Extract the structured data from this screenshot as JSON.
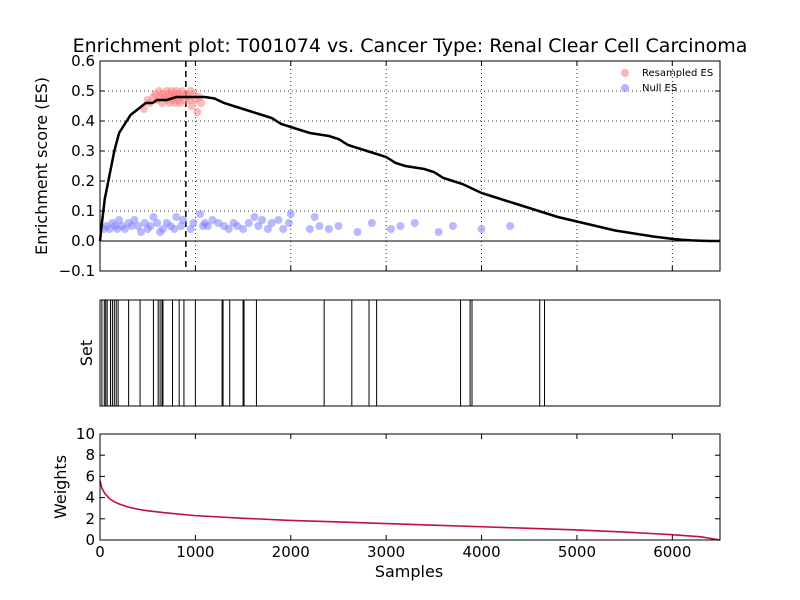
{
  "chart_data": [
    {
      "type": "line",
      "panel": "enrichment",
      "title": "Enrichment plot: T001074 vs. Cancer Type: Renal Clear Cell Carcinoma",
      "xlabel": "",
      "ylabel": "Enrichment score (ES)",
      "xlim": [
        0,
        6500
      ],
      "ylim": [
        -0.1,
        0.6
      ],
      "yticks": [
        "−0.1",
        "0.0",
        "0.1",
        "0.2",
        "0.3",
        "0.4",
        "0.5",
        "0.6"
      ],
      "grid": true,
      "legend_position": "top-right",
      "legend": [
        {
          "label": "Resampled ES",
          "color": "#ff8080"
        },
        {
          "label": "Null ES",
          "color": "#8080ff"
        }
      ],
      "peak_x": 900,
      "es_curve": {
        "color": "#000000",
        "x": [
          0,
          20,
          50,
          100,
          150,
          200,
          260,
          320,
          400,
          480,
          550,
          600,
          700,
          800,
          900,
          1000,
          1100,
          1200,
          1300,
          1400,
          1500,
          1600,
          1700,
          1800,
          1900,
          2000,
          2100,
          2200,
          2300,
          2400,
          2500,
          2600,
          2700,
          2800,
          2900,
          3000,
          3100,
          3200,
          3300,
          3400,
          3500,
          3600,
          3700,
          3800,
          3900,
          4000,
          4200,
          4400,
          4600,
          4800,
          5000,
          5200,
          5400,
          5600,
          5800,
          6000,
          6100,
          6200,
          6300,
          6400,
          6500
        ],
        "y": [
          0.0,
          0.06,
          0.14,
          0.22,
          0.3,
          0.36,
          0.39,
          0.42,
          0.44,
          0.46,
          0.46,
          0.47,
          0.47,
          0.48,
          0.48,
          0.48,
          0.48,
          0.475,
          0.46,
          0.45,
          0.44,
          0.43,
          0.42,
          0.41,
          0.39,
          0.38,
          0.37,
          0.36,
          0.355,
          0.35,
          0.34,
          0.32,
          0.31,
          0.3,
          0.29,
          0.28,
          0.26,
          0.25,
          0.245,
          0.24,
          0.23,
          0.21,
          0.2,
          0.19,
          0.175,
          0.16,
          0.14,
          0.12,
          0.1,
          0.08,
          0.065,
          0.05,
          0.035,
          0.025,
          0.015,
          0.007,
          0.004,
          0.002,
          0.001,
          0.0,
          0.0
        ]
      },
      "resampled_es": {
        "color": "#ff8080",
        "x": [
          460,
          500,
          520,
          560,
          580,
          600,
          620,
          640,
          650,
          660,
          680,
          700,
          700,
          720,
          730,
          740,
          750,
          760,
          770,
          780,
          790,
          800,
          810,
          820,
          830,
          840,
          850,
          860,
          880,
          900,
          920,
          940,
          950,
          960,
          980,
          1000,
          1020,
          1040,
          1060
        ],
        "y": [
          0.44,
          0.47,
          0.46,
          0.48,
          0.49,
          0.47,
          0.5,
          0.48,
          0.46,
          0.49,
          0.48,
          0.5,
          0.47,
          0.49,
          0.46,
          0.48,
          0.5,
          0.47,
          0.49,
          0.48,
          0.46,
          0.5,
          0.48,
          0.47,
          0.49,
          0.46,
          0.48,
          0.5,
          0.47,
          0.49,
          0.48,
          0.47,
          0.5,
          0.45,
          0.49,
          0.47,
          0.43,
          0.48,
          0.46
        ]
      },
      "null_es": {
        "color": "#8080ff",
        "x": [
          40,
          70,
          100,
          130,
          160,
          180,
          200,
          230,
          260,
          300,
          330,
          360,
          400,
          430,
          470,
          500,
          530,
          560,
          600,
          630,
          660,
          700,
          740,
          780,
          800,
          850,
          870,
          950,
          980,
          1050,
          1080,
          1100,
          1130,
          1180,
          1240,
          1300,
          1350,
          1400,
          1440,
          1500,
          1560,
          1620,
          1660,
          1700,
          1760,
          1800,
          1870,
          1920,
          1980,
          2000,
          2200,
          2250,
          2300,
          2400,
          2500,
          2700,
          2850,
          3050,
          3150,
          3300,
          3550,
          3700,
          4000,
          4300
        ],
        "y": [
          0.04,
          0.05,
          0.04,
          0.06,
          0.05,
          0.04,
          0.07,
          0.05,
          0.04,
          0.06,
          0.05,
          0.07,
          0.05,
          0.03,
          0.06,
          0.04,
          0.05,
          0.08,
          0.06,
          0.03,
          0.04,
          0.06,
          0.05,
          0.04,
          0.08,
          0.05,
          0.07,
          0.04,
          0.06,
          0.09,
          0.05,
          0.06,
          0.05,
          0.07,
          0.06,
          0.05,
          0.04,
          0.06,
          0.05,
          0.04,
          0.06,
          0.08,
          0.05,
          0.07,
          0.04,
          0.06,
          0.07,
          0.04,
          0.06,
          0.09,
          0.04,
          0.08,
          0.05,
          0.04,
          0.05,
          0.03,
          0.06,
          0.04,
          0.05,
          0.06,
          0.03,
          0.05,
          0.04,
          0.05
        ]
      }
    },
    {
      "type": "bar",
      "panel": "set",
      "xlabel": "",
      "ylabel": "Set",
      "xlim": [
        0,
        6500
      ],
      "hit_positions": [
        20,
        45,
        60,
        75,
        110,
        130,
        150,
        170,
        190,
        300,
        420,
        560,
        610,
        630,
        650,
        660,
        760,
        830,
        880,
        1000,
        1280,
        1290,
        1360,
        1500,
        1510,
        1640,
        2350,
        2640,
        2820,
        2900,
        3780,
        3880,
        3900,
        4610,
        4660
      ]
    },
    {
      "type": "line",
      "panel": "weights",
      "xlabel": "Samples",
      "ylabel": "Weights",
      "xlim": [
        0,
        6500
      ],
      "ylim": [
        0,
        10
      ],
      "xticks": [
        "0",
        "1000",
        "2000",
        "3000",
        "4000",
        "5000",
        "6000"
      ],
      "yticks": [
        "0",
        "2",
        "4",
        "6",
        "8",
        "10"
      ],
      "line_color": "#c0103c",
      "x": [
        0,
        20,
        50,
        100,
        150,
        200,
        300,
        400,
        500,
        700,
        1000,
        1500,
        2000,
        2500,
        3000,
        3500,
        4000,
        4500,
        5000,
        5500,
        6000,
        6300,
        6500
      ],
      "y": [
        5.6,
        4.9,
        4.4,
        3.9,
        3.6,
        3.4,
        3.1,
        2.9,
        2.75,
        2.55,
        2.3,
        2.05,
        1.85,
        1.7,
        1.55,
        1.4,
        1.25,
        1.1,
        0.95,
        0.75,
        0.5,
        0.3,
        0.0
      ]
    }
  ]
}
